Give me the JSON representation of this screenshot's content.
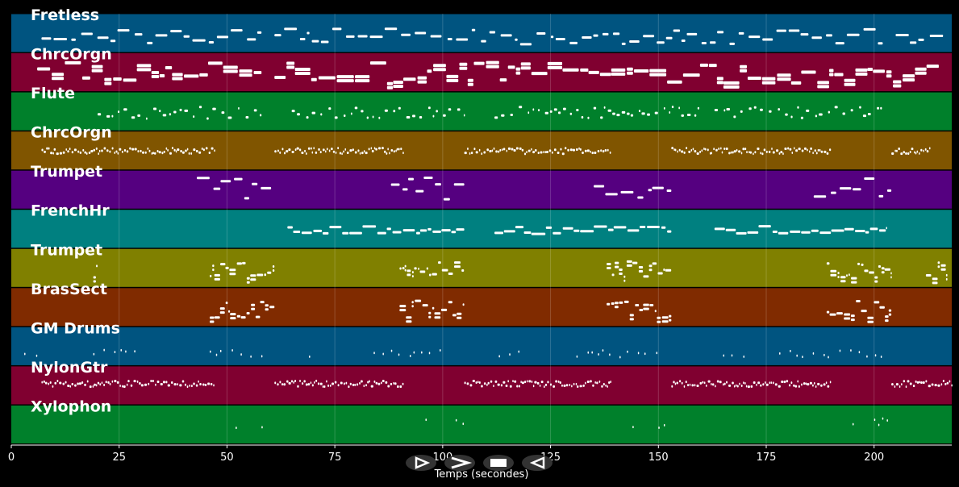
{
  "chart_data": {
    "type": "piano-roll",
    "xlabel": "Temps (secondes)",
    "xlim": [
      0,
      218
    ],
    "x_ticks": [
      0,
      25,
      50,
      75,
      100,
      125,
      150,
      175,
      200
    ],
    "grid": true,
    "tracks": [
      {
        "name": "Fretless",
        "color": "#005480",
        "segments": [
          [
            7,
            58
          ],
          [
            61,
            202
          ],
          [
            205,
            216
          ]
        ],
        "style": "sparse-long",
        "pitch_range": [
          0.35,
          0.75
        ]
      },
      {
        "name": "ChrcOrgn",
        "color": "#800030",
        "segments": [
          [
            6,
            58
          ],
          [
            61,
            215
          ]
        ],
        "style": "chords",
        "pitch_range": [
          0.2,
          0.75
        ]
      },
      {
        "name": "Flute",
        "color": "#00802b",
        "segments": [
          [
            20,
            58
          ],
          [
            65,
            105
          ],
          [
            112,
            160
          ],
          [
            163,
            202
          ]
        ],
        "style": "short",
        "pitch_range": [
          0.35,
          0.65
        ]
      },
      {
        "name": "ChrcOrgn",
        "color": "#805500",
        "segments": [
          [
            7,
            47
          ],
          [
            61,
            91
          ],
          [
            105,
            139
          ],
          [
            153,
            190
          ],
          [
            204,
            213
          ]
        ],
        "style": "dense",
        "pitch_range": [
          0.4,
          0.55
        ]
      },
      {
        "name": "Trumpet",
        "color": "#550080",
        "segments": [
          [
            43,
            61
          ],
          [
            88,
            105
          ],
          [
            135,
            153
          ],
          [
            186,
            204
          ]
        ],
        "style": "motif",
        "pitch_range": [
          0.15,
          0.75
        ]
      },
      {
        "name": "FrenchHr",
        "color": "#008080",
        "segments": [
          [
            64,
            105
          ],
          [
            112,
            153
          ],
          [
            163,
            203
          ]
        ],
        "style": "legato",
        "pitch_range": [
          0.4,
          0.6
        ]
      },
      {
        "name": "Trumpet",
        "color": "#808000",
        "segments": [
          [
            19,
            20
          ],
          [
            46,
            61
          ],
          [
            90,
            105
          ],
          [
            138,
            153
          ],
          [
            189,
            204
          ],
          [
            212,
            217
          ]
        ],
        "style": "block",
        "pitch_range": [
          0.3,
          0.75
        ]
      },
      {
        "name": "BrasSect",
        "color": "#802b00",
        "segments": [
          [
            46,
            61
          ],
          [
            90,
            105
          ],
          [
            138,
            153
          ],
          [
            189,
            204
          ]
        ],
        "style": "block",
        "pitch_range": [
          0.3,
          0.75
        ]
      },
      {
        "name": "GM Drums",
        "color": "#005480",
        "segments": [
          [
            3,
            6
          ],
          [
            19,
            30
          ],
          [
            46,
            58
          ],
          [
            69,
            70
          ],
          [
            84,
            100
          ],
          [
            113,
            118
          ],
          [
            131,
            150
          ],
          [
            165,
            170
          ],
          [
            178,
            202
          ]
        ],
        "style": "hits",
        "pitch_range": [
          0.55,
          0.75
        ]
      },
      {
        "name": "NylonGtr",
        "color": "#800030",
        "segments": [
          [
            7,
            47
          ],
          [
            61,
            91
          ],
          [
            105,
            139
          ],
          [
            153,
            190
          ],
          [
            204,
            218
          ]
        ],
        "style": "dense",
        "pitch_range": [
          0.35,
          0.5
        ]
      },
      {
        "name": "Xylophon",
        "color": "#00802b",
        "segments": [
          [
            52,
            53
          ],
          [
            58,
            60
          ],
          [
            96,
            97
          ],
          [
            103,
            105
          ],
          [
            144,
            145
          ],
          [
            150,
            153
          ],
          [
            195,
            196
          ],
          [
            200,
            203
          ]
        ],
        "style": "hits",
        "pitch_range": [
          0.3,
          0.55
        ]
      }
    ]
  },
  "controls": {
    "play_symbol": "ᐅ",
    "forward_symbol": "ᐳ",
    "stop_symbol": "■",
    "back_symbol": "ᐊ"
  }
}
